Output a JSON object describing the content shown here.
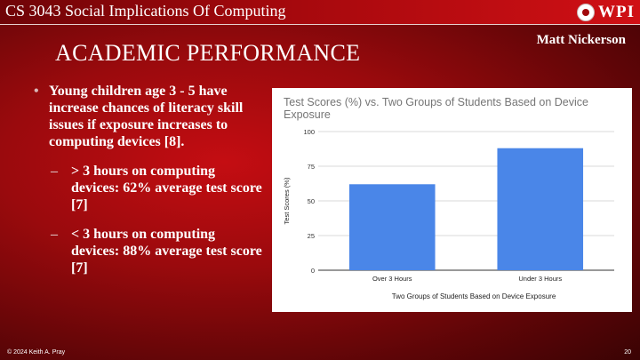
{
  "header": {
    "course_title": "CS 3043 Social Implications Of Computing",
    "logo_text": "WPI",
    "author": "Matt Nickerson"
  },
  "slide": {
    "title": "ACADEMIC PERFORMANCE",
    "bullets": [
      {
        "text": "Young children age 3 - 5 have increase chances of literacy skill issues if exposure increases to computing devices [8].",
        "sub": [
          "> 3 hours on computing devices: 62% average test score [7]",
          "< 3 hours on computing devices: 88% average test score [7]"
        ]
      }
    ]
  },
  "chart_data": {
    "type": "bar",
    "title": "Test Scores (%) vs. Two Groups of Students Based on Device Exposure",
    "xlabel": "Two Groups of Students Based on Device Exposure",
    "ylabel": "Test Scores (%)",
    "categories": [
      "Over 3 Hours",
      "Under 3 Hours"
    ],
    "values": [
      62,
      88
    ],
    "ylim": [
      0,
      100
    ],
    "yticks": [
      0,
      25,
      50,
      75,
      100
    ],
    "grid": true,
    "legend": "none",
    "bar_color": "#4a86e8"
  },
  "footer": {
    "copyright": "© 2024 Keith A. Pray",
    "page_number": "20"
  },
  "colors": {
    "accent_red": "#a1080c",
    "text": "#ffffff"
  }
}
